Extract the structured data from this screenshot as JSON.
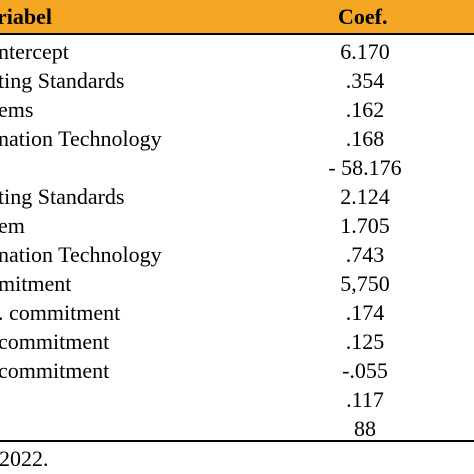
{
  "table": {
    "header": {
      "variable": "riabel",
      "coef": "Coef."
    },
    "rows": [
      {
        "variable": "ntercept",
        "coef": "6.170"
      },
      {
        "variable": "ting Standards",
        "coef": ".354"
      },
      {
        "variable": "ems",
        "coef": ".162"
      },
      {
        "variable": "nation Technology",
        "coef": ".168"
      },
      {
        "variable": "",
        "coef": "- 58.176"
      },
      {
        "variable": "ting Standards",
        "coef": "2.124"
      },
      {
        "variable": "em",
        "coef": "1.705"
      },
      {
        "variable": "nation Technology",
        "coef": ".743"
      },
      {
        "variable": "mitment",
        "coef": "5,750"
      },
      {
        "variable": ". commitment",
        "coef": ".174"
      },
      {
        "variable": "commitment",
        "coef": ".125"
      },
      {
        "variable": "commitment",
        "coef": "-.055"
      },
      {
        "variable": "",
        "coef": ".117"
      },
      {
        "variable": "",
        "coef": "88"
      }
    ]
  },
  "source_note": "2022.",
  "colors": {
    "header_background": "#f5a623",
    "text": "#000000",
    "rule": "#000000"
  }
}
